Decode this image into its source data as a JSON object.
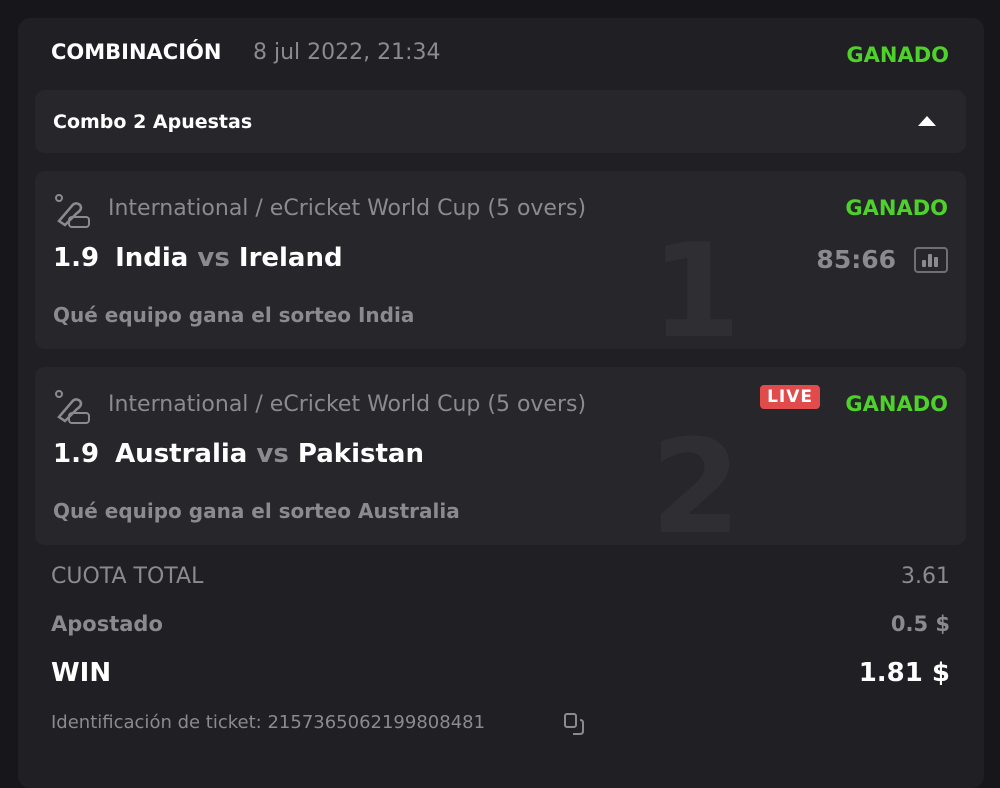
{
  "header": {
    "title": "COMBINACIÓN",
    "date": "8 jul 2022, 21:34",
    "status": "GANADO"
  },
  "combo": {
    "label": "Combo 2 Apuestas",
    "toggle_icon": "triangle-up-icon"
  },
  "bets": [
    {
      "index": "1",
      "league": "International / eCricket World Cup (5 overs)",
      "odd": "1.9",
      "home": "India",
      "vs": "vs",
      "away": "Ireland",
      "status": "GANADO",
      "score": "85:66",
      "pick": "Qué equipo gana el sorteo India"
    },
    {
      "index": "2",
      "league": "International / eCricket World Cup (5 overs)",
      "odd": "1.9",
      "home": "Australia",
      "vs": "vs",
      "away": "Pakistan",
      "status": "GANADO",
      "live": "LIVE",
      "pick": "Qué equipo gana el sorteo Australia"
    }
  ],
  "summary": {
    "total_odds_label": "CUOTA TOTAL",
    "total_odds": "3.61",
    "stake_label": "Apostado",
    "stake": "0.5 $",
    "win_label": "WIN",
    "win": "1.81 $",
    "ticket_label": "Identificación de ticket: 215736506219980848​1"
  },
  "colors": {
    "won": "#4fd12b",
    "live": "#e24b4b",
    "background": "#1f1f24"
  }
}
